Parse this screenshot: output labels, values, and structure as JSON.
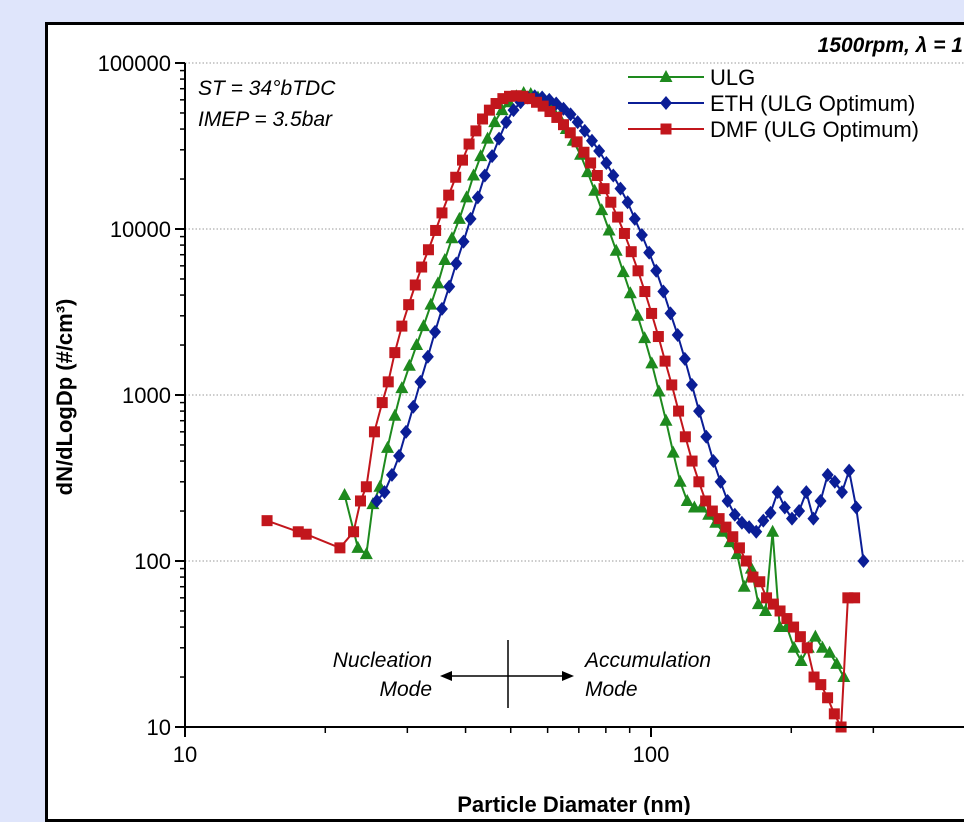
{
  "chart_data": {
    "type": "line",
    "title": "1500rpm, λ = 1",
    "xlabel": "Particle Diamater (nm)",
    "ylabel": "dN/dLogDp (#/cm³)",
    "xscale": "log",
    "yscale": "log",
    "xlim": [
      10,
      300
    ],
    "ylim": [
      10,
      100000
    ],
    "x_ticks": [
      "10",
      "100"
    ],
    "y_ticks": [
      "10",
      "100",
      "1000",
      "10000",
      "100000"
    ],
    "grid": "horizontal dotted",
    "legend_position": "top-right",
    "annotations": {
      "conditions": [
        "ST = 34°bTDC",
        "IMEP = 3.5bar"
      ],
      "nucleation": [
        "Nucleation",
        "Mode"
      ],
      "accumulation": [
        "Accumulation",
        "Mode"
      ]
    },
    "series": [
      {
        "name": "ULG",
        "color": "#1e8a1e",
        "marker": "triangle",
        "x": [
          22.0,
          23.5,
          24.5,
          25.3,
          26.2,
          27.2,
          28.2,
          29.2,
          30.3,
          31.4,
          32.5,
          33.7,
          34.9,
          36.1,
          37.4,
          38.8,
          40.2,
          41.6,
          43.1,
          44.6,
          46.2,
          47.9,
          49.6,
          51.4,
          53.3,
          55.2,
          57.2,
          59.2,
          61.3,
          63.5,
          65.8,
          68.1,
          70.6,
          73.1,
          75.7,
          78.4,
          81.3,
          84.2,
          87.2,
          90.3,
          93.6,
          96.9,
          100.4,
          104.0,
          107.7,
          111.6,
          115.5,
          119.6,
          123.9,
          128.4,
          133.0,
          137.7,
          142.6,
          147.7,
          153.0,
          158.5,
          164.2,
          170.0,
          176.1,
          182.4,
          188.9,
          195.7,
          202.7,
          210.0,
          217.5,
          225.3,
          233.3,
          241.7,
          250.3,
          259.3
        ],
        "y": [
          250,
          120,
          110,
          220,
          280,
          480,
          750,
          1100,
          1500,
          2000,
          2600,
          3500,
          4700,
          6500,
          8800,
          11500,
          15500,
          21000,
          27500,
          35000,
          44000,
          52000,
          58000,
          63000,
          66000,
          65000,
          62000,
          58000,
          53000,
          47000,
          40000,
          34000,
          28000,
          22000,
          17000,
          13000,
          9800,
          7400,
          5500,
          4100,
          3000,
          2200,
          1550,
          1050,
          700,
          450,
          300,
          230,
          210,
          210,
          190,
          170,
          150,
          130,
          110,
          70,
          90,
          55,
          50,
          150,
          40,
          40,
          30,
          25,
          30,
          35,
          30,
          28,
          24,
          20
        ]
      },
      {
        "name": "ETH (ULG Optimum)",
        "color": "#0b1e96",
        "marker": "diamond",
        "x": [
          25.8,
          26.8,
          27.8,
          28.8,
          29.8,
          30.9,
          32.0,
          33.2,
          34.4,
          35.6,
          36.9,
          38.2,
          39.6,
          41.0,
          42.5,
          44.0,
          45.6,
          47.2,
          48.9,
          50.7,
          52.5,
          54.4,
          56.3,
          58.4,
          60.5,
          62.6,
          64.9,
          67.2,
          69.6,
          72.1,
          74.7,
          77.4,
          80.2,
          83.0,
          86.0,
          89.1,
          92.3,
          95.6,
          99.1,
          102.6,
          106.3,
          110.1,
          114.1,
          118.2,
          122.4,
          126.8,
          131.4,
          136.1,
          141.0,
          146.0,
          151.3,
          156.7,
          162.4,
          168.2,
          174.2,
          180.5,
          187.0,
          193.7,
          200.7,
          207.9,
          215.4,
          223.1,
          231.1,
          239.4,
          248.0,
          256.9,
          266.2,
          275.7,
          285.7
        ],
        "y": [
          230,
          260,
          330,
          430,
          600,
          850,
          1200,
          1700,
          2400,
          3300,
          4500,
          6200,
          8400,
          11500,
          15500,
          21000,
          27500,
          35000,
          44000,
          52000,
          58000,
          62000,
          63000,
          62000,
          60000,
          57000,
          53000,
          49000,
          44000,
          39000,
          34000,
          29500,
          25000,
          21000,
          17500,
          14500,
          11500,
          9200,
          7200,
          5600,
          4200,
          3100,
          2300,
          1650,
          1150,
          800,
          560,
          400,
          300,
          230,
          190,
          170,
          160,
          150,
          175,
          195,
          260,
          210,
          180,
          200,
          260,
          180,
          230,
          330,
          300,
          260,
          350,
          210,
          100
        ]
      },
      {
        "name": "DMF (ULG Optimum)",
        "color": "#c2161c",
        "marker": "square",
        "x": [
          15.0,
          17.5,
          18.2,
          21.5,
          23.0,
          23.8,
          24.5,
          25.5,
          26.5,
          27.3,
          28.2,
          29.2,
          30.2,
          31.2,
          32.2,
          33.3,
          34.5,
          35.6,
          36.8,
          38.1,
          39.4,
          40.7,
          42.1,
          43.5,
          45.0,
          46.5,
          48.1,
          49.7,
          51.4,
          53.1,
          54.9,
          56.8,
          58.7,
          60.7,
          62.8,
          64.9,
          67.1,
          69.4,
          71.8,
          74.2,
          76.7,
          79.3,
          82.0,
          84.8,
          87.7,
          90.7,
          93.8,
          97.0,
          100.3,
          103.7,
          107.2,
          110.8,
          114.6,
          118.5,
          122.5,
          126.7,
          131.0,
          135.4,
          140.0,
          144.8,
          149.8,
          154.8,
          160.1,
          165.5,
          171.2,
          177.0,
          183.0,
          189.2,
          195.7,
          202.3,
          209.2,
          216.4,
          223.8,
          231.4,
          239.3,
          247.4,
          255.8,
          264.5,
          273.5
        ],
        "y": [
          175,
          150,
          145,
          120,
          150,
          230,
          280,
          600,
          900,
          1200,
          1800,
          2600,
          3500,
          4600,
          5900,
          7500,
          9800,
          12500,
          16000,
          20500,
          26000,
          32500,
          39000,
          46000,
          52000,
          57000,
          61000,
          63000,
          63500,
          63000,
          61000,
          58000,
          55000,
          51000,
          47000,
          42500,
          38000,
          33500,
          29000,
          25000,
          21000,
          17500,
          14500,
          11800,
          9400,
          7300,
          5600,
          4200,
          3100,
          2250,
          1600,
          1150,
          800,
          560,
          400,
          300,
          230,
          200,
          180,
          160,
          140,
          120,
          100,
          80,
          75,
          60,
          55,
          50,
          45,
          40,
          35,
          30,
          20,
          18,
          15,
          12,
          10,
          60,
          60
        ]
      }
    ]
  }
}
